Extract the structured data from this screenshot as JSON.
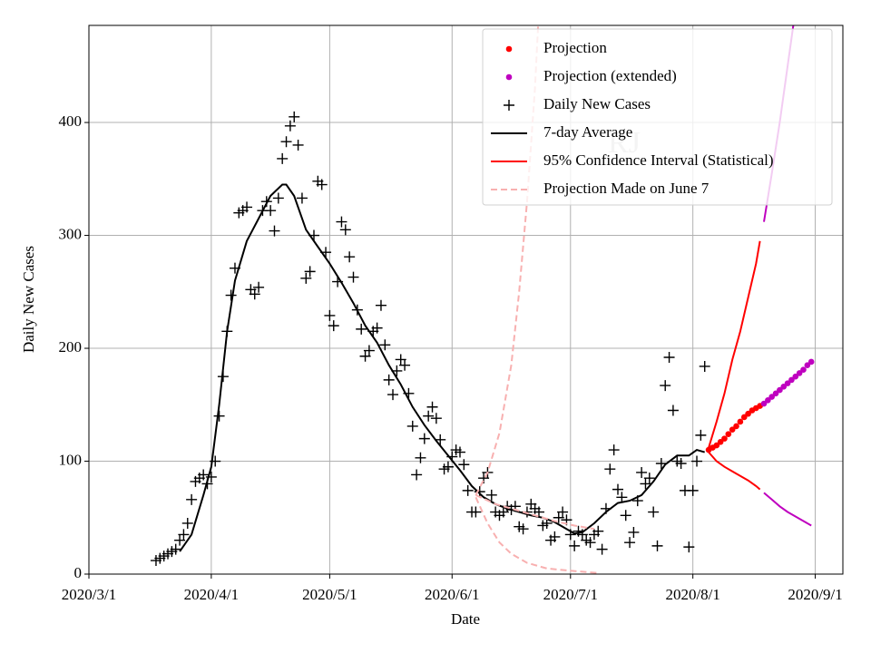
{
  "chart_data": {
    "type": "line",
    "xlabel": "Date",
    "ylabel": "Daily New Cases",
    "annotation": "RJ",
    "xlim": [
      "2020/3/1",
      "2020/9/8"
    ],
    "xticks": [
      "2020/3/1",
      "2020/4/1",
      "2020/5/1",
      "2020/6/1",
      "2020/7/1",
      "2020/8/1",
      "2020/9/1"
    ],
    "ylim": [
      0,
      486
    ],
    "yticks": [
      0,
      100,
      200,
      300,
      400
    ],
    "grid": true,
    "legend": "upper right",
    "series": [
      {
        "name": "Projection",
        "color": "#ff0000",
        "marker": "o",
        "x": [
          "2020/8/5",
          "2020/8/6",
          "2020/8/7",
          "2020/8/8",
          "2020/8/9",
          "2020/8/10",
          "2020/8/11",
          "2020/8/12",
          "2020/8/13",
          "2020/8/14",
          "2020/8/15",
          "2020/8/16",
          "2020/8/17",
          "2020/8/18"
        ],
        "values": [
          110,
          112,
          114,
          117,
          120,
          124,
          128,
          131,
          135,
          139,
          142,
          145,
          147,
          149
        ]
      },
      {
        "name": "Projection (extended)",
        "color": "#bf00bf",
        "marker": "o",
        "x": [
          "2020/8/19",
          "2020/8/20",
          "2020/8/21",
          "2020/8/22",
          "2020/8/23",
          "2020/8/24",
          "2020/8/25",
          "2020/8/26",
          "2020/8/27",
          "2020/8/28",
          "2020/8/29",
          "2020/8/30",
          "2020/8/31"
        ],
        "values": [
          151,
          154,
          157,
          160,
          163,
          166,
          169,
          172,
          175,
          178,
          181,
          185,
          188
        ]
      },
      {
        "name": "Daily New Cases",
        "color": "#000000",
        "marker": "+",
        "x": [
          "2020/3/18",
          "2020/3/19",
          "2020/3/20",
          "2020/3/21",
          "2020/3/22",
          "2020/3/23",
          "2020/3/24",
          "2020/3/25",
          "2020/3/26",
          "2020/3/27",
          "2020/3/28",
          "2020/3/29",
          "2020/3/30",
          "2020/3/31",
          "2020/4/1",
          "2020/4/2",
          "2020/4/3",
          "2020/4/4",
          "2020/4/5",
          "2020/4/6",
          "2020/4/7",
          "2020/4/8",
          "2020/4/9",
          "2020/4/10",
          "2020/4/11",
          "2020/4/12",
          "2020/4/13",
          "2020/4/14",
          "2020/4/15",
          "2020/4/16",
          "2020/4/17",
          "2020/4/18",
          "2020/4/19",
          "2020/4/20",
          "2020/4/21",
          "2020/4/22",
          "2020/4/23",
          "2020/4/24",
          "2020/4/25",
          "2020/4/26",
          "2020/4/27",
          "2020/4/28",
          "2020/4/29",
          "2020/4/30",
          "2020/5/1",
          "2020/5/2",
          "2020/5/3",
          "2020/5/4",
          "2020/5/5",
          "2020/5/6",
          "2020/5/7",
          "2020/5/8",
          "2020/5/9",
          "2020/5/10",
          "2020/5/11",
          "2020/5/12",
          "2020/5/13",
          "2020/5/14",
          "2020/5/15",
          "2020/5/16",
          "2020/5/17",
          "2020/5/18",
          "2020/5/19",
          "2020/5/20",
          "2020/5/21",
          "2020/5/22",
          "2020/5/23",
          "2020/5/24",
          "2020/5/25",
          "2020/5/26",
          "2020/5/27",
          "2020/5/28",
          "2020/5/29",
          "2020/5/30",
          "2020/5/31",
          "2020/6/1",
          "2020/6/2",
          "2020/6/3",
          "2020/6/4",
          "2020/6/5",
          "2020/6/6",
          "2020/6/7",
          "2020/6/8",
          "2020/6/9",
          "2020/6/10",
          "2020/6/11",
          "2020/6/12",
          "2020/6/13",
          "2020/6/14",
          "2020/6/15",
          "2020/6/16",
          "2020/6/17",
          "2020/6/18",
          "2020/6/19",
          "2020/6/20",
          "2020/6/21",
          "2020/6/22",
          "2020/6/23",
          "2020/6/24",
          "2020/6/25",
          "2020/6/26",
          "2020/6/27",
          "2020/6/28",
          "2020/6/29",
          "2020/6/30",
          "2020/7/1",
          "2020/7/2",
          "2020/7/3",
          "2020/7/4",
          "2020/7/5",
          "2020/7/6",
          "2020/7/7",
          "2020/7/8",
          "2020/7/9",
          "2020/7/10",
          "2020/7/11",
          "2020/7/12",
          "2020/7/13",
          "2020/7/14",
          "2020/7/15",
          "2020/7/16",
          "2020/7/17",
          "2020/7/18",
          "2020/7/19",
          "2020/7/20",
          "2020/7/21",
          "2020/7/22",
          "2020/7/23",
          "2020/7/24",
          "2020/7/25",
          "2020/7/26",
          "2020/7/27",
          "2020/7/28",
          "2020/7/29",
          "2020/7/30",
          "2020/7/31",
          "2020/8/1",
          "2020/8/2",
          "2020/8/3",
          "2020/8/4"
        ],
        "values": [
          12,
          14,
          16,
          18,
          20,
          22,
          30,
          35,
          45,
          66,
          82,
          85,
          88,
          80,
          86,
          100,
          140,
          175,
          215,
          247,
          271,
          320,
          322,
          325,
          252,
          248,
          254,
          322,
          330,
          322,
          304,
          333,
          368,
          383,
          397,
          405,
          380,
          333,
          262,
          268,
          300,
          348,
          345,
          285,
          229,
          220,
          259,
          312,
          305,
          281,
          263,
          234,
          217,
          193,
          198,
          215,
          218,
          238,
          203,
          172,
          159,
          180,
          190,
          185,
          160,
          131,
          88,
          103,
          120,
          140,
          148,
          138,
          119,
          93,
          95,
          104,
          110,
          108,
          97,
          74,
          55,
          55,
          73,
          85,
          90,
          70,
          55,
          52,
          55,
          60,
          57,
          60,
          42,
          40,
          55,
          62,
          58,
          55,
          43,
          45,
          30,
          33,
          50,
          55,
          48,
          35,
          25,
          38,
          35,
          30,
          28,
          35,
          38,
          22,
          58,
          93,
          110,
          75,
          68,
          52,
          28,
          37,
          65,
          90,
          80,
          85,
          55,
          25,
          98,
          167,
          192,
          145,
          100,
          98,
          74,
          24,
          74,
          100,
          123,
          184
        ]
      },
      {
        "name": "7-day Average",
        "color": "#000000",
        "line": "solid",
        "x": [
          "2020/3/24",
          "2020/3/27",
          "2020/3/30",
          "2020/4/1",
          "2020/4/3",
          "2020/4/5",
          "2020/4/7",
          "2020/4/10",
          "2020/4/13",
          "2020/4/16",
          "2020/4/19",
          "2020/4/20",
          "2020/4/22",
          "2020/4/25",
          "2020/4/28",
          "2020/5/1",
          "2020/5/4",
          "2020/5/7",
          "2020/5/10",
          "2020/5/13",
          "2020/5/16",
          "2020/5/19",
          "2020/5/22",
          "2020/5/25",
          "2020/5/28",
          "2020/5/31",
          "2020/6/3",
          "2020/6/6",
          "2020/6/9",
          "2020/6/12",
          "2020/6/15",
          "2020/6/18",
          "2020/6/21",
          "2020/6/24",
          "2020/6/27",
          "2020/6/30",
          "2020/7/2",
          "2020/7/4",
          "2020/7/7",
          "2020/7/10",
          "2020/7/13",
          "2020/7/16",
          "2020/7/19",
          "2020/7/22",
          "2020/7/25",
          "2020/7/28",
          "2020/7/31",
          "2020/8/2",
          "2020/8/4"
        ],
        "values": [
          20,
          35,
          70,
          95,
          150,
          215,
          260,
          295,
          315,
          335,
          345,
          345,
          335,
          305,
          290,
          275,
          258,
          240,
          220,
          205,
          185,
          168,
          148,
          132,
          118,
          105,
          92,
          78,
          68,
          62,
          58,
          55,
          52,
          50,
          46,
          40,
          36,
          37,
          45,
          55,
          63,
          65,
          70,
          82,
          97,
          105,
          105,
          110,
          108
        ]
      },
      {
        "name": "95% Confidence Interval (Statistical)",
        "color": "#ff0000",
        "line": "solid",
        "x": [
          "2020/8/5",
          "2020/8/7",
          "2020/8/9",
          "2020/8/11",
          "2020/8/13",
          "2020/8/15",
          "2020/8/17",
          "2020/8/18"
        ],
        "values": [
          112,
          135,
          160,
          190,
          215,
          245,
          275,
          295
        ]
      },
      {
        "color": "#ff0000",
        "line": "solid",
        "x": [
          "2020/8/5",
          "2020/8/7",
          "2020/8/9",
          "2020/8/11",
          "2020/8/13",
          "2020/8/15",
          "2020/8/17",
          "2020/8/18"
        ],
        "values": [
          108,
          100,
          95,
          91,
          87,
          83,
          78,
          75
        ]
      },
      {
        "color": "#bf00bf",
        "line": "solid",
        "x": [
          "2020/8/19",
          "2020/8/21",
          "2020/8/23",
          "2020/8/25",
          "2020/8/27"
        ],
        "values": [
          312,
          355,
          400,
          450,
          500
        ]
      },
      {
        "color": "#bf00bf",
        "line": "solid",
        "x": [
          "2020/8/19",
          "2020/8/21",
          "2020/8/23",
          "2020/8/25",
          "2020/8/27",
          "2020/8/29",
          "2020/8/31"
        ],
        "values": [
          72,
          66,
          60,
          55,
          51,
          47,
          43
        ]
      },
      {
        "name": "Projection Made on June 7",
        "color": "#f8b0b0",
        "line": "dashed",
        "x": [
          "2020/6/7",
          "2020/6/10",
          "2020/6/13",
          "2020/6/16",
          "2020/6/18",
          "2020/6/20",
          "2020/6/22",
          "2020/6/23"
        ],
        "values": [
          70,
          90,
          125,
          185,
          250,
          330,
          430,
          500
        ]
      },
      {
        "color": "#f8b0b0",
        "line": "dashed",
        "x": [
          "2020/6/7",
          "2020/6/12",
          "2020/6/17",
          "2020/6/22",
          "2020/6/27",
          "2020/7/2",
          "2020/7/7"
        ],
        "values": [
          70,
          62,
          57,
          52,
          47,
          43,
          40
        ]
      },
      {
        "color": "#f8b0b0",
        "line": "dashed",
        "x": [
          "2020/6/7",
          "2020/6/10",
          "2020/6/13",
          "2020/6/16",
          "2020/6/20",
          "2020/6/25",
          "2020/7/1",
          "2020/7/8"
        ],
        "values": [
          68,
          45,
          28,
          18,
          10,
          5,
          3,
          1
        ]
      }
    ]
  }
}
